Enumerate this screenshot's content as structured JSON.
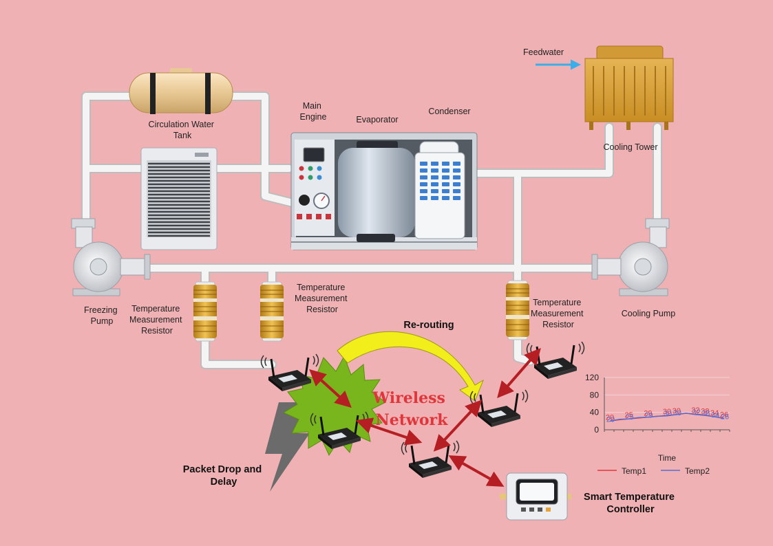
{
  "labels": {
    "feedwater": "Feedwater",
    "circulation_tank": [
      "Circulation Water",
      "Tank"
    ],
    "main_engine": [
      "Main",
      "Engine"
    ],
    "evaporator": "Evaporator",
    "condenser": "Condenser",
    "cooling_tower": "Cooling Tower",
    "freezing_pump": [
      "Freezing",
      "Pump"
    ],
    "resistor_1": [
      "Temperature",
      "Measurement",
      "Resistor"
    ],
    "resistor_2": [
      "Temperature",
      "Measurement",
      "Resistor"
    ],
    "resistor_3": [
      "Temperature",
      "Measurement",
      "Resistor"
    ],
    "cooling_pump": "Cooling Pump",
    "rerouting": "Re-routing",
    "wireless_network": [
      "Wireless",
      "Network"
    ],
    "packet_drop": [
      "Packet Drop and",
      "Delay"
    ],
    "smart_controller": [
      "Smart Temperature",
      "Controller"
    ]
  },
  "colors": {
    "background": "#efb1b4",
    "pipe": "#e6e6e6",
    "burst": "#79b51c",
    "link_arrow": "#b51f24",
    "reroute_arrow": "#f1ee1b",
    "temp1": "#e0353a",
    "temp2": "#5b6ccf"
  },
  "chart_data": {
    "type": "line",
    "xlabel": "Time",
    "ylabel": "",
    "ylim": [
      0,
      120
    ],
    "yticks": [
      0,
      40,
      80,
      120
    ],
    "legend_position": "bottom",
    "series": [
      {
        "name": "Temp1",
        "values": [
          20,
          23,
          25,
          27,
          29,
          31,
          33,
          35,
          38,
          36,
          34,
          30,
          26
        ]
      },
      {
        "name": "Temp2",
        "values": [
          20,
          24,
          25,
          28,
          29,
          31,
          32,
          35,
          38,
          35,
          33,
          30,
          26
        ]
      }
    ],
    "data_labels": [
      "20",
      "25",
      "29",
      "30",
      "30",
      "32",
      "38",
      "34",
      "26"
    ]
  }
}
